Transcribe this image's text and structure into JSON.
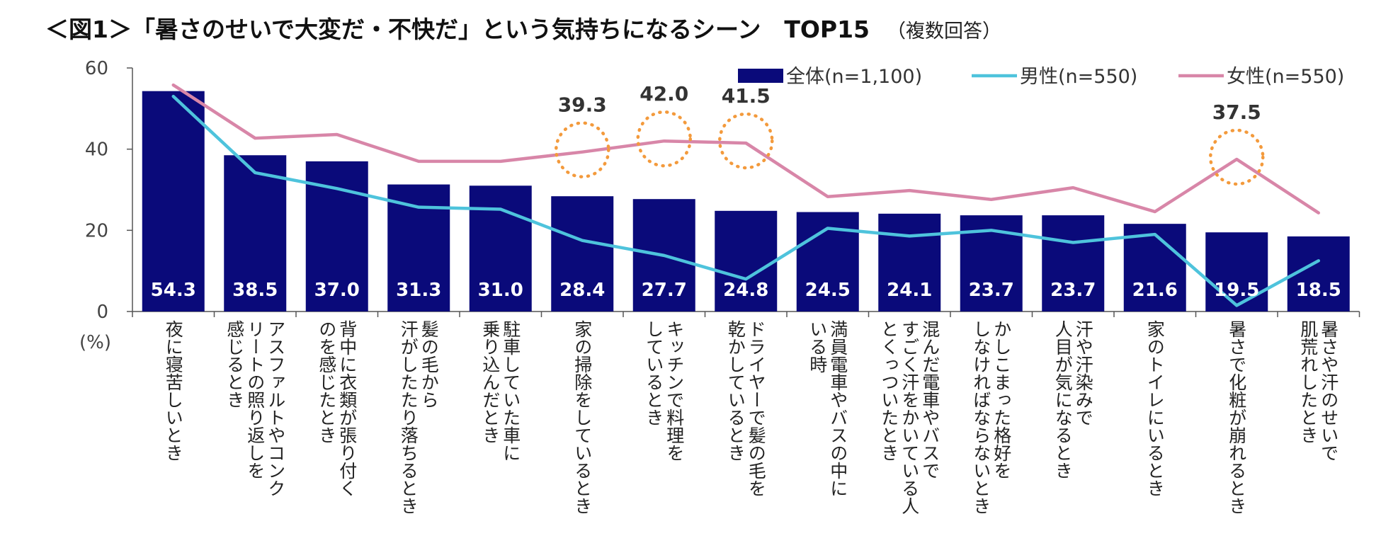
{
  "chart_data": {
    "type": "bar",
    "title": "＜図1＞「暑さのせいで大変だ・不快だ」という気持ちになるシーン　TOP15",
    "subtitle": "（複数回答）",
    "ylabel": "(%)",
    "ylim": [
      0,
      60
    ],
    "yticks": [
      0,
      20,
      40,
      60
    ],
    "categories": [
      "夜に寝苦しいとき",
      "アスファルトやコンク\nリートの照り返しを\n感じるとき",
      "背中に衣類が張り付く\nのを感じたとき",
      "髪の毛から\n汗がしたたり落ちるとき",
      "駐車していた車に\n乗り込んだとき",
      "家の掃除をしているとき",
      "キッチンで料理を\nしているとき",
      "ドライヤーで髪の毛を\n乾かしているとき",
      "満員電車やバスの中に\nいる時",
      "混んだ電車やバスで\nすごく汗をかいている人\nとくっついたとき",
      "かしこまった格好を\nしなければならないとき",
      "汗や汗染みで\n人目が気になるとき",
      "家のトイレにいるとき",
      "暑さで化粧が崩れるとき",
      "暑さや汗のせいで\n肌荒れしたとき"
    ],
    "series": [
      {
        "name": "全体(n=1,100)",
        "kind": "bar",
        "color": "#0a0a7a",
        "values": [
          54.3,
          38.5,
          37.0,
          31.3,
          31.0,
          28.4,
          27.7,
          24.8,
          24.5,
          24.1,
          23.7,
          23.7,
          21.6,
          19.5,
          18.5
        ],
        "labels": [
          "54.3",
          "38.5",
          "37.0",
          "31.3",
          "31.0",
          "28.4",
          "27.7",
          "24.8",
          "24.5",
          "24.1",
          "23.7",
          "23.7",
          "21.6",
          "19.5",
          "18.5"
        ]
      },
      {
        "name": "男性(n=550)",
        "kind": "line",
        "color": "#4ec3dc",
        "values": [
          53.0,
          34.2,
          30.3,
          25.7,
          25.2,
          17.5,
          13.8,
          8.0,
          20.5,
          18.6,
          20.0,
          17.0,
          19.0,
          1.5,
          12.5
        ]
      },
      {
        "name": "女性(n=550)",
        "kind": "line",
        "color": "#d886a8",
        "values": [
          55.8,
          42.7,
          43.6,
          37.0,
          37.0,
          39.3,
          42.0,
          41.5,
          28.3,
          29.8,
          27.6,
          30.5,
          24.6,
          37.5,
          24.3
        ]
      }
    ],
    "highlights": [
      {
        "index": 5,
        "label": "39.3"
      },
      {
        "index": 6,
        "label": "42.0"
      },
      {
        "index": 7,
        "label": "41.5"
      },
      {
        "index": 13,
        "label": "37.5"
      }
    ],
    "highlight_color": "#f39a3c",
    "legend_position": "top-right"
  }
}
